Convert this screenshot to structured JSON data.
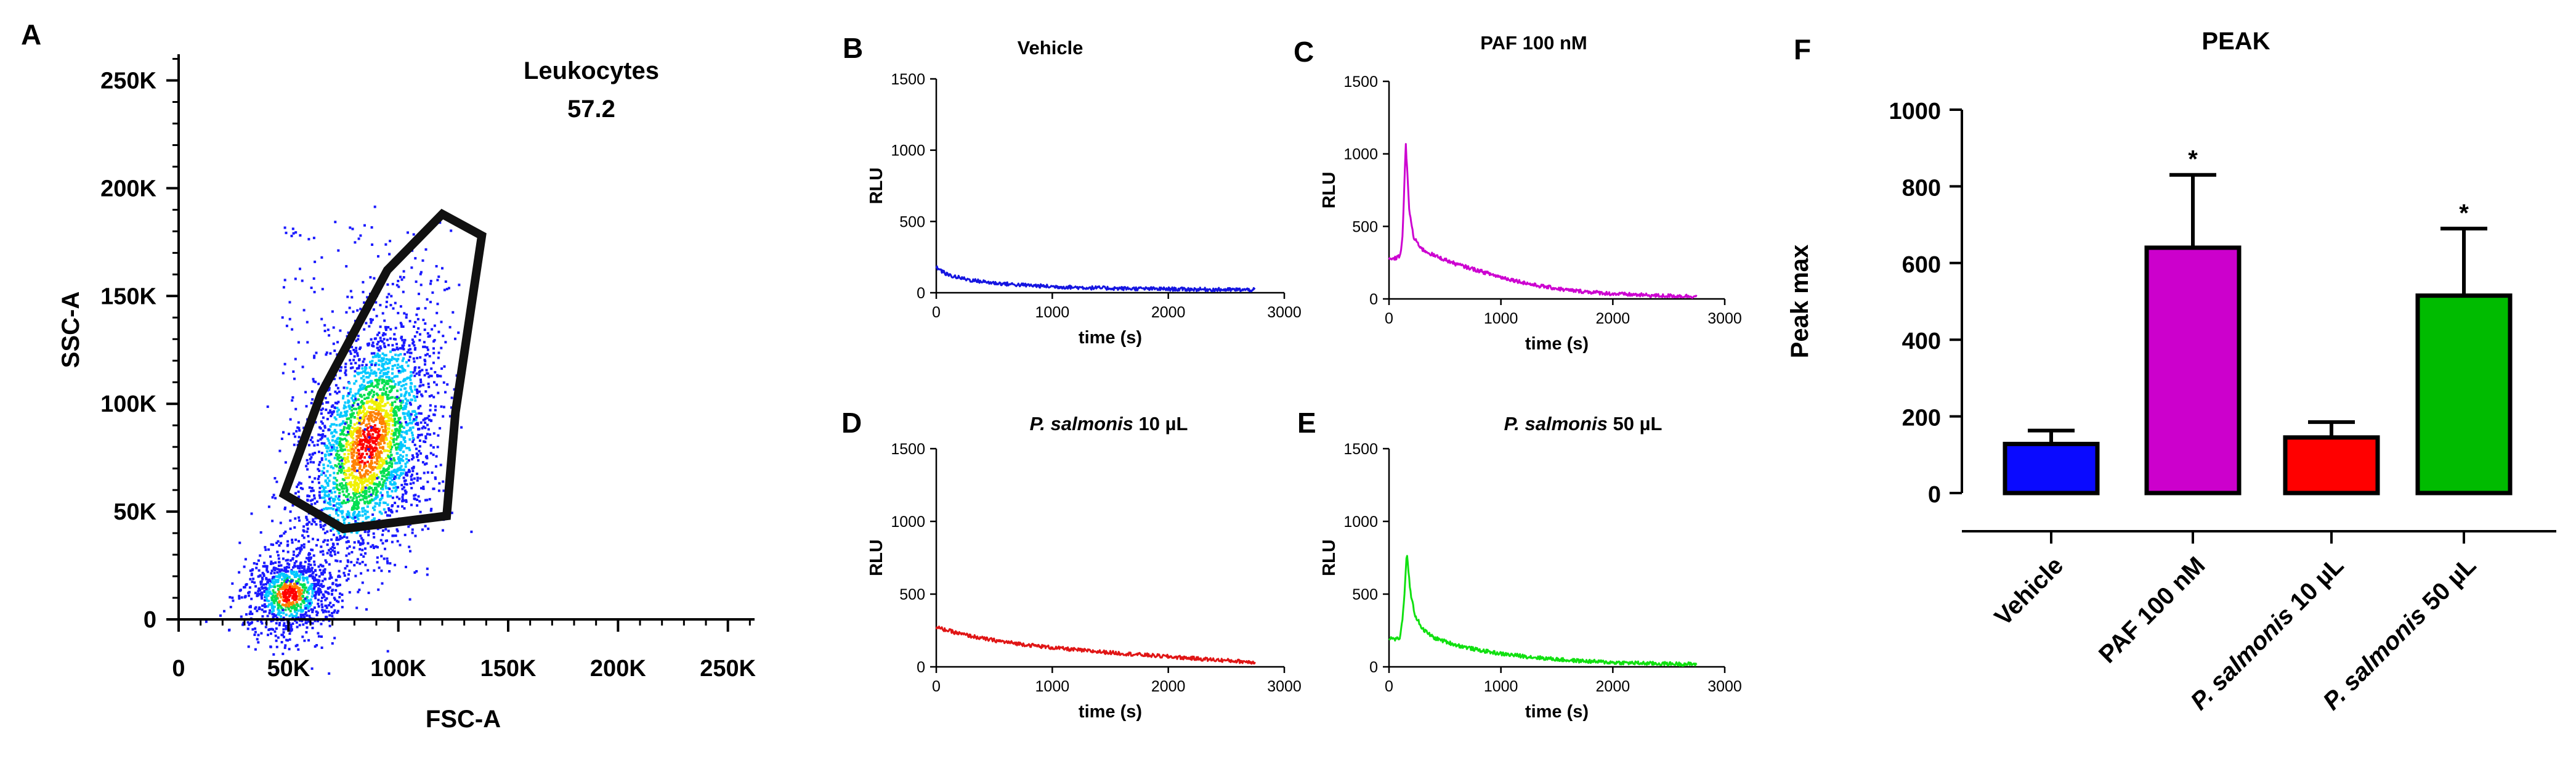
{
  "figure": {
    "panels": {
      "A": "A",
      "B": "B",
      "C": "C",
      "D": "D",
      "E": "E",
      "F": "F"
    }
  },
  "chart_data": [
    {
      "id": "A",
      "type": "scatter",
      "title": "",
      "xlabel": "FSC-A",
      "ylabel": "SSC-A",
      "xlim": [
        0,
        262144
      ],
      "ylim": [
        0,
        262144
      ],
      "xticks": [
        0,
        50000,
        100000,
        150000,
        200000,
        250000
      ],
      "xtick_labels": [
        "0",
        "50K",
        "100K",
        "150K",
        "200K",
        "250K"
      ],
      "yticks": [
        0,
        50000,
        100000,
        150000,
        200000,
        250000
      ],
      "ytick_labels": [
        "0",
        "50K",
        "100K",
        "150K",
        "200K",
        "250K"
      ],
      "gate": {
        "name": "Leukocytes",
        "percent": "57.2",
        "vertices": [
          [
            75000,
            42000
          ],
          [
            122000,
            48000
          ],
          [
            126000,
            96000
          ],
          [
            138000,
            178000
          ],
          [
            120000,
            188000
          ],
          [
            95000,
            162000
          ],
          [
            65000,
            105000
          ],
          [
            48000,
            58000
          ]
        ]
      },
      "populations": [
        {
          "name": "debris",
          "center": [
            50000,
            12000
          ],
          "spread": [
            11000,
            10000
          ],
          "rotation": 35,
          "density": "high"
        },
        {
          "name": "leukocytes",
          "center": [
            86000,
            82000
          ],
          "spread": [
            13000,
            30000
          ],
          "rotation": -15,
          "density": "high"
        }
      ],
      "colormap": [
        "#1a1aff",
        "#00c8ff",
        "#00e050",
        "#f0f000",
        "#ff8000",
        "#ff0000"
      ]
    },
    {
      "id": "B",
      "type": "line",
      "title": "Vehicle",
      "title_parts": [],
      "xlabel": "time (s)",
      "ylabel": "RLU",
      "xlim": [
        0,
        3000
      ],
      "ylim": [
        0,
        1500
      ],
      "xticks": [
        0,
        1000,
        2000,
        3000
      ],
      "yticks": [
        0,
        500,
        1000,
        1500
      ],
      "color": "#1515e0",
      "series": [
        {
          "name": "Vehicle",
          "x": [
            0,
            50,
            100,
            200,
            300,
            500,
            700,
            1000,
            1300,
            1600,
            2000,
            2400,
            2750
          ],
          "y": [
            180,
            150,
            125,
            105,
            88,
            68,
            56,
            43,
            35,
            30,
            26,
            22,
            20
          ]
        }
      ]
    },
    {
      "id": "C",
      "type": "line",
      "title": "PAF 100 nM",
      "title_parts": [],
      "xlabel": "time (s)",
      "ylabel": "RLU",
      "xlim": [
        0,
        3000
      ],
      "ylim": [
        0,
        1500
      ],
      "xticks": [
        0,
        1000,
        2000,
        3000
      ],
      "yticks": [
        0,
        500,
        1000,
        1500
      ],
      "color": "#cc00d0",
      "series": [
        {
          "name": "PAF 100 nM",
          "x": [
            0,
            60,
            100,
            120,
            150,
            180,
            220,
            300,
            400,
            600,
            800,
            1000,
            1300,
            1600,
            2000,
            2400,
            2750
          ],
          "y": [
            270,
            280,
            300,
            420,
            1070,
            620,
            420,
            340,
            300,
            240,
            195,
            150,
            95,
            60,
            35,
            22,
            18
          ]
        }
      ]
    },
    {
      "id": "D",
      "type": "line",
      "title": "P. salmonis 10 µL",
      "title_parts": [
        "P. salmonis",
        " 10 µL"
      ],
      "xlabel": "time (s)",
      "ylabel": "RLU",
      "xlim": [
        0,
        3000
      ],
      "ylim": [
        0,
        1500
      ],
      "xticks": [
        0,
        1000,
        2000,
        3000
      ],
      "yticks": [
        0,
        500,
        1000,
        1500
      ],
      "color": "#e01515",
      "series": [
        {
          "name": "P. salmonis 10 µL",
          "x": [
            0,
            100,
            200,
            400,
            600,
            800,
            1000,
            1300,
            1600,
            2000,
            2400,
            2750
          ],
          "y": [
            270,
            250,
            228,
            195,
            170,
            150,
            132,
            110,
            92,
            70,
            48,
            32
          ]
        }
      ]
    },
    {
      "id": "E",
      "type": "line",
      "title": "P. salmonis 50 µL",
      "title_parts": [
        "P. salmonis",
        " 50 µL"
      ],
      "xlabel": "time (s)",
      "ylabel": "RLU",
      "xlim": [
        0,
        3000
      ],
      "ylim": [
        0,
        1500
      ],
      "xticks": [
        0,
        1000,
        2000,
        3000
      ],
      "yticks": [
        0,
        500,
        1000,
        1500
      ],
      "color": "#10e010",
      "series": [
        {
          "name": "P. salmonis 50 µL",
          "x": [
            0,
            60,
            100,
            130,
            160,
            190,
            230,
            300,
            400,
            600,
            800,
            1000,
            1300,
            1600,
            2000,
            2400,
            2750
          ],
          "y": [
            200,
            190,
            200,
            400,
            790,
            520,
            360,
            260,
            200,
            150,
            115,
            90,
            65,
            45,
            30,
            22,
            18
          ]
        }
      ]
    },
    {
      "id": "F",
      "type": "bar",
      "title": "PEAK",
      "xlabel": "",
      "ylabel": "Peak max",
      "ylim": [
        0,
        1000
      ],
      "yticks": [
        0,
        200,
        400,
        600,
        800,
        1000
      ],
      "categories": [
        "Vehicle",
        "PAF 100 nM",
        "P. salmonis 10 µL",
        "P. salmonis 50 µL"
      ],
      "category_parts": [
        [],
        [],
        [
          "P. salmonis",
          " 10 µL"
        ],
        [
          "P. salmonis",
          " 50 µL"
        ]
      ],
      "values": [
        128,
        640,
        145,
        515
      ],
      "errors": [
        35,
        190,
        40,
        175
      ],
      "colors": [
        "#0a0aff",
        "#cc00cc",
        "#ff0000",
        "#00bb00"
      ],
      "significance": [
        "",
        "*",
        "",
        "*"
      ]
    }
  ]
}
